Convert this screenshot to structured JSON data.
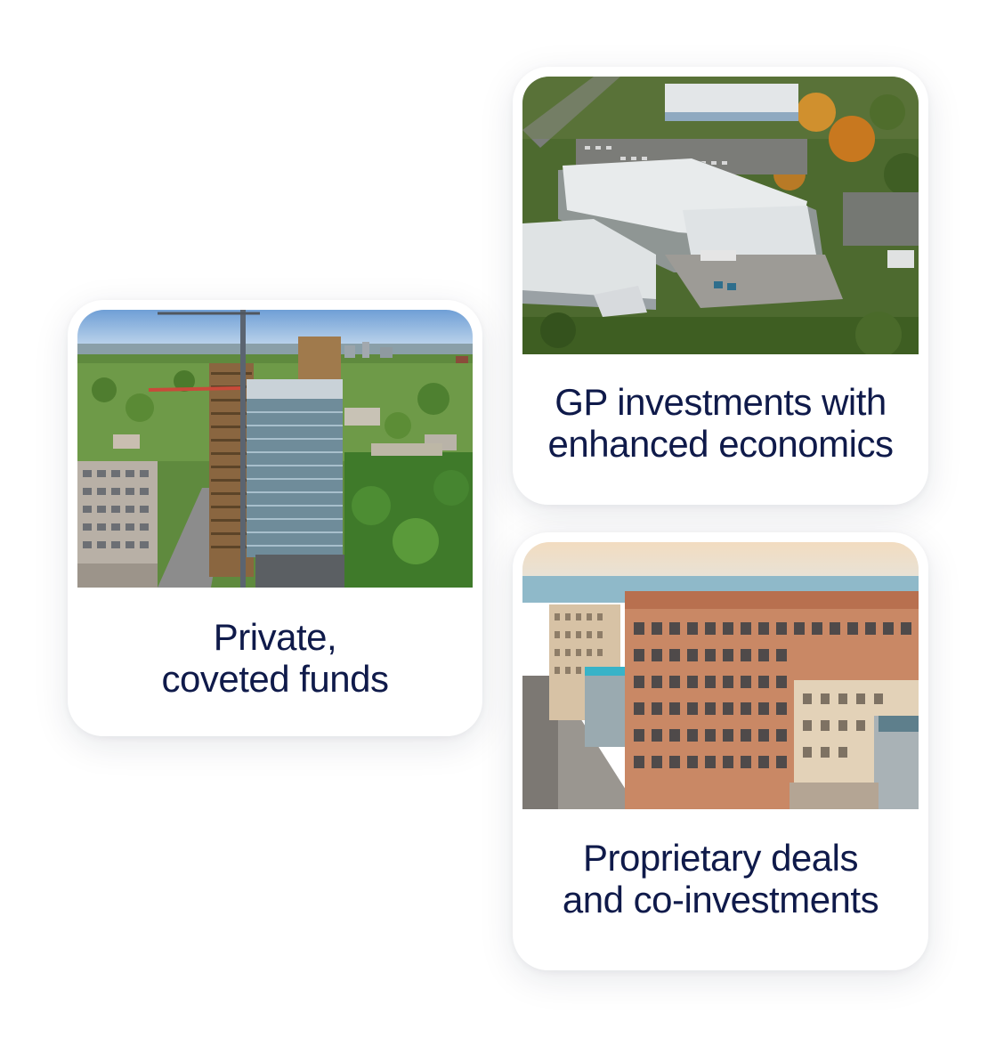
{
  "cards": [
    {
      "id": "private",
      "caption_lines": [
        "Private,",
        "coveted funds"
      ],
      "image": "aerial-city-towers-with-crane"
    },
    {
      "id": "gp",
      "caption_lines": [
        "GP investments with",
        "enhanced economics"
      ],
      "image": "aerial-industrial-warehouses"
    },
    {
      "id": "deals",
      "caption_lines": [
        "Proprietary deals",
        "and co-investments"
      ],
      "image": "downtown-brick-buildings-waterfront"
    }
  ],
  "colors": {
    "caption_text": "#0f1a4a",
    "card_background": "#ffffff"
  }
}
